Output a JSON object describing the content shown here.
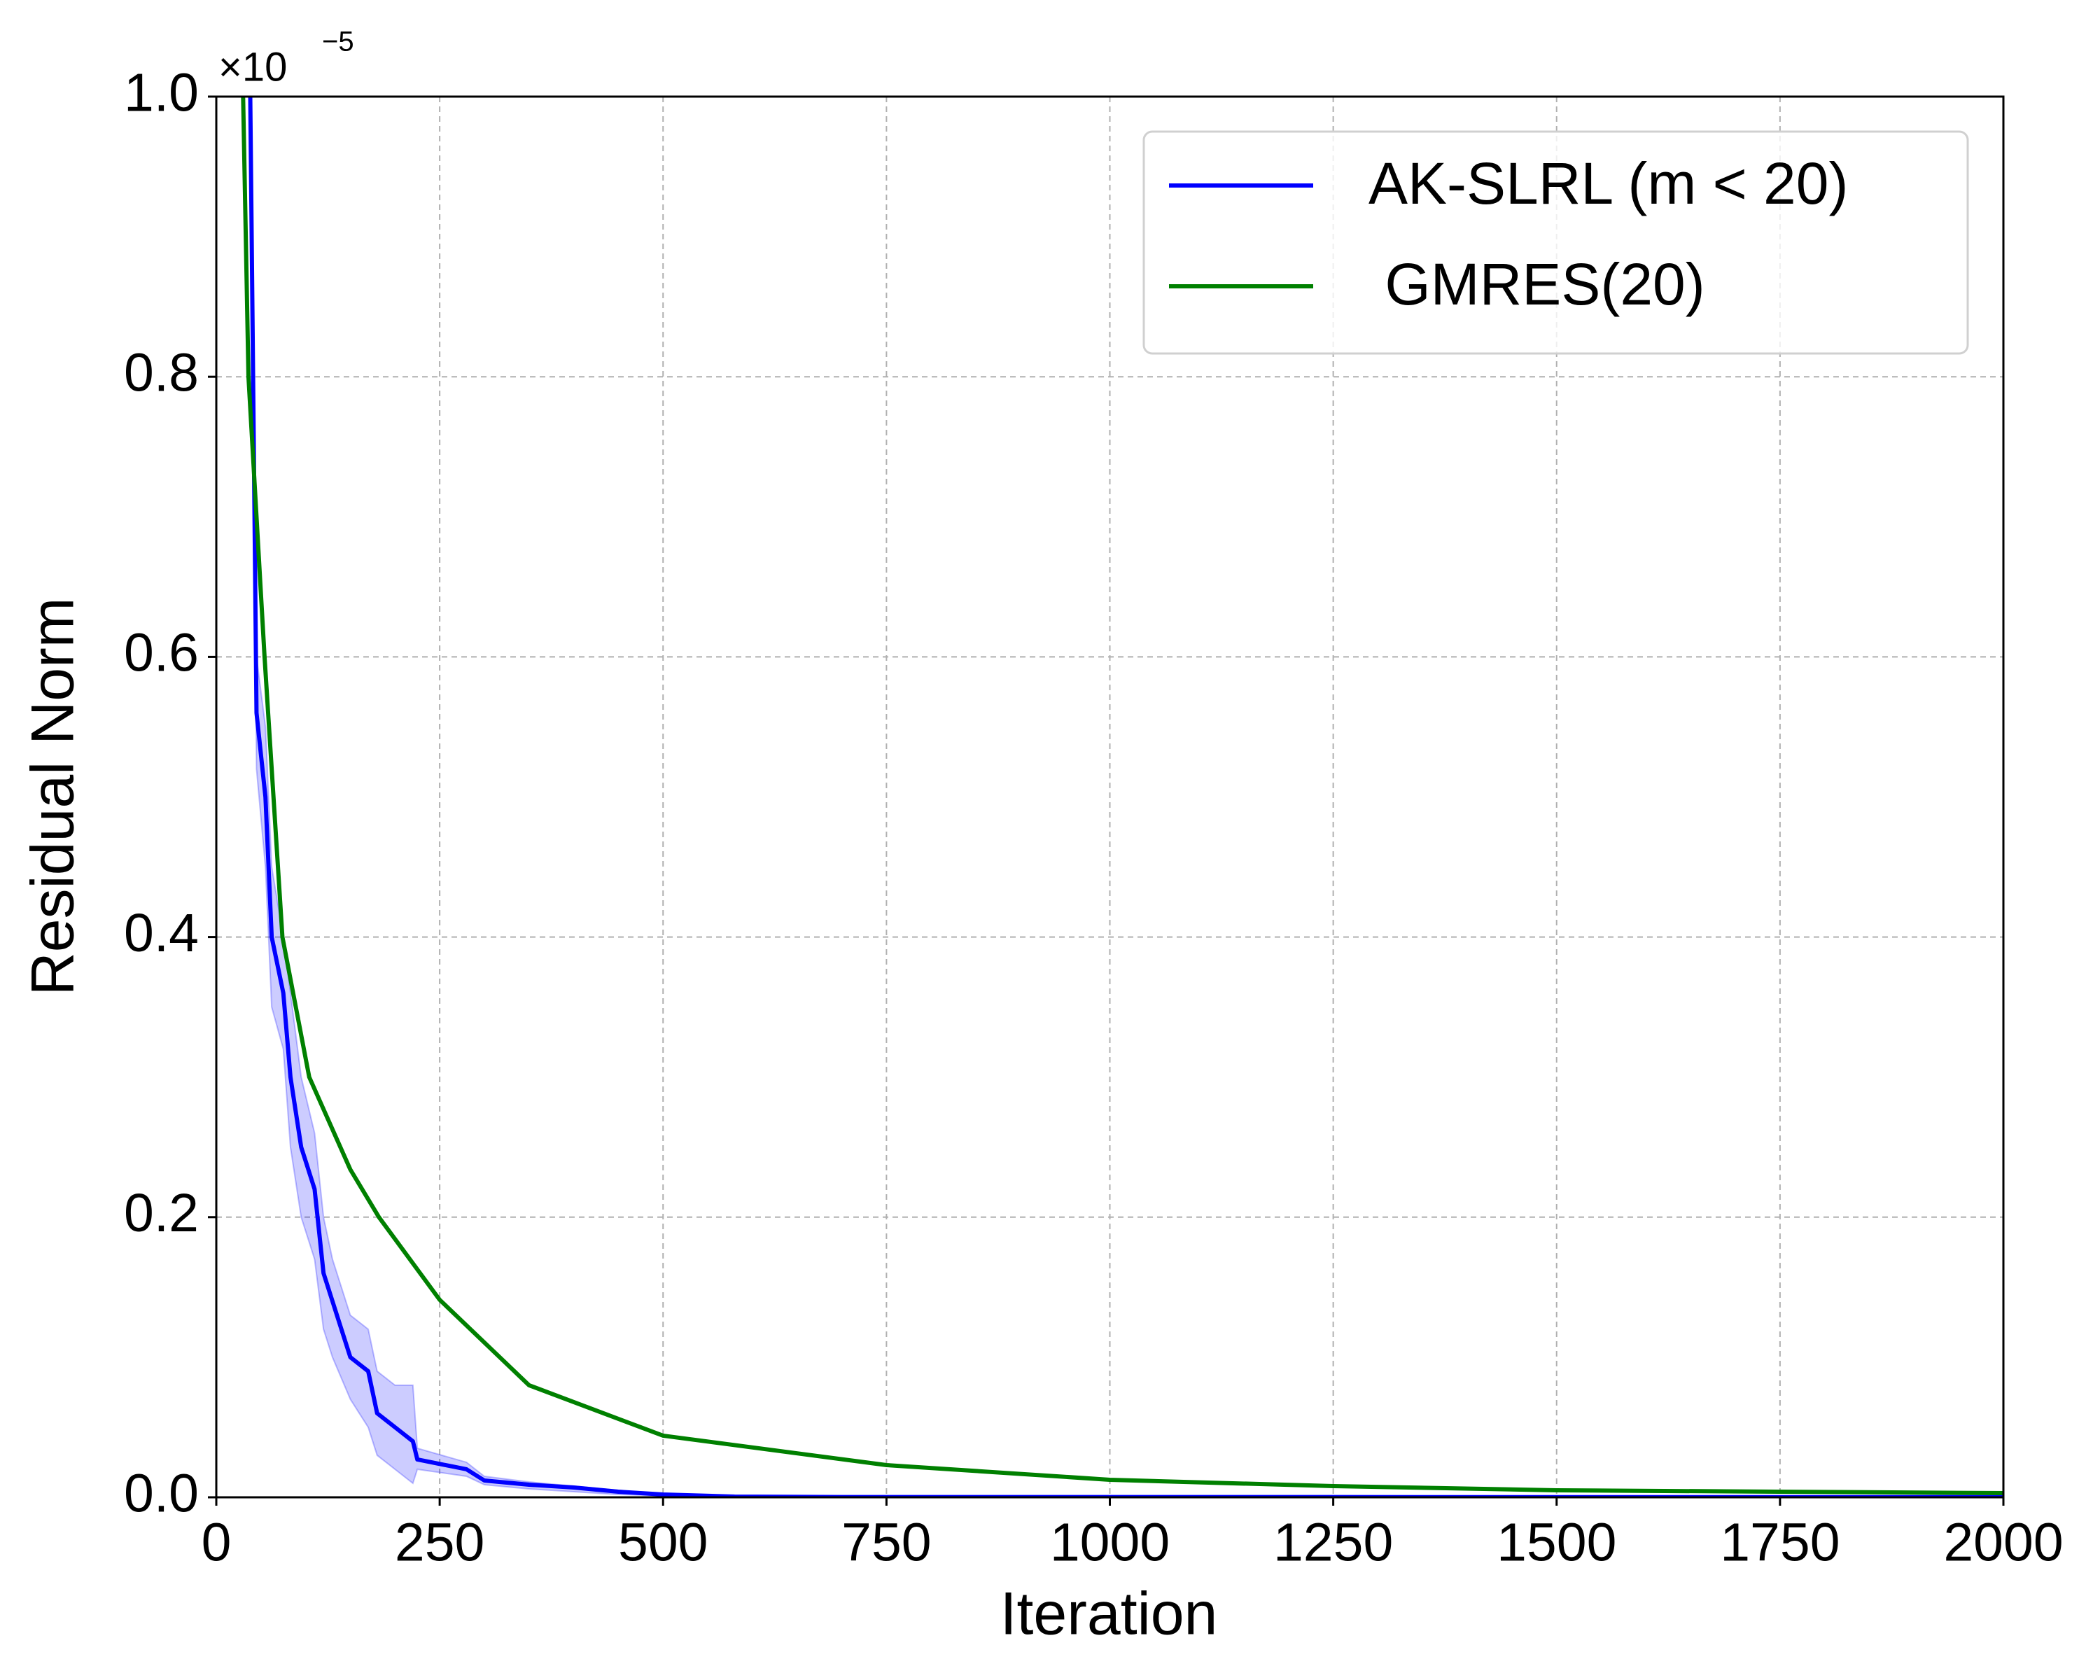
{
  "chart_data": {
    "type": "line",
    "x_label": "Iteration",
    "y_label": "Residual Norm",
    "y_offset": {
      "base": "×10",
      "exponent": "−5"
    },
    "xlim": [
      0,
      2000
    ],
    "xticks": [
      0,
      250,
      500,
      750,
      1000,
      1250,
      1500,
      1750,
      2000
    ],
    "ylim": [
      0,
      1.0
    ],
    "yticks": [
      {
        "value": 0,
        "label": "0.0"
      },
      0.2,
      0.4,
      0.6,
      0.8,
      {
        "value": 1.0,
        "label": "1.0"
      }
    ],
    "grid": true,
    "legend": "upper right",
    "series": [
      {
        "name": "AK-SLRL (m < 20)",
        "color": "#0000ff",
        "band_color": "#0000ff",
        "x": [
          38,
          45,
          55,
          62,
          75,
          83,
          95,
          110,
          120,
          130,
          150,
          170,
          180,
          200,
          220,
          225,
          280,
          300,
          350,
          400,
          450,
          500,
          580,
          700,
          2000
        ],
        "values": [
          1.0,
          0.56,
          0.5,
          0.4,
          0.36,
          0.3,
          0.25,
          0.22,
          0.16,
          0.14,
          0.1,
          0.09,
          0.06,
          0.05,
          0.04,
          0.027,
          0.02,
          0.012,
          0.009,
          0.007,
          0.004,
          0.002,
          0.0005,
          0.0002,
          0.0001
        ],
        "upper": [
          1.0,
          0.6,
          0.55,
          0.45,
          0.4,
          0.36,
          0.3,
          0.26,
          0.2,
          0.17,
          0.13,
          0.12,
          0.09,
          0.08,
          0.08,
          0.035,
          0.025,
          0.015,
          0.011,
          0.008,
          0.005,
          0.002,
          0.0006,
          0.0002,
          0.0001
        ],
        "lower": [
          1.0,
          0.52,
          0.45,
          0.35,
          0.32,
          0.25,
          0.2,
          0.17,
          0.12,
          0.1,
          0.07,
          0.05,
          0.03,
          0.02,
          0.01,
          0.02,
          0.015,
          0.009,
          0.006,
          0.004,
          0.002,
          0.001,
          0.0003,
          0.0001,
          0.0001
        ]
      },
      {
        "name": " GMRES(20)",
        "color": "#008000",
        "x": [
          30,
          36,
          54,
          74,
          104,
          150,
          182,
          250,
          350,
          500,
          750,
          1000,
          1250,
          1500,
          1750,
          2000
        ],
        "values": [
          1.0,
          0.8,
          0.6,
          0.4,
          0.3,
          0.234,
          0.2,
          0.141,
          0.08,
          0.044,
          0.023,
          0.0125,
          0.008,
          0.005,
          0.004,
          0.003
        ]
      }
    ]
  }
}
